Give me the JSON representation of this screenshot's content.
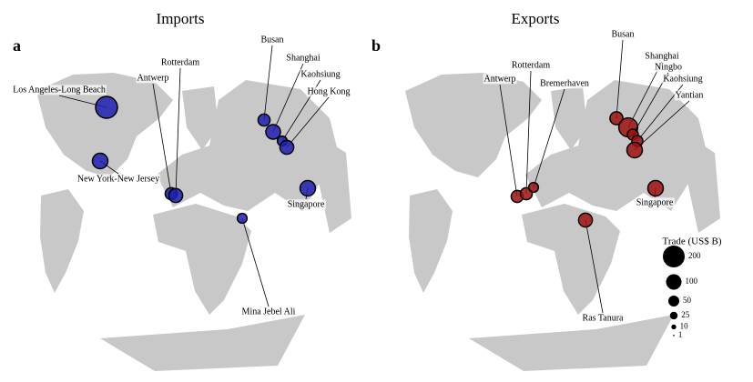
{
  "panels": [
    {
      "label": "a",
      "title": "Imports",
      "color": "#1f1fb0",
      "ports": [
        {
          "name": "Los Angeles-Long Beach",
          "value": 200
        },
        {
          "name": "Antwerp",
          "value": 60
        },
        {
          "name": "Rotterdam",
          "value": 80
        },
        {
          "name": "Busan",
          "value": 60
        },
        {
          "name": "Shanghai",
          "value": 90
        },
        {
          "name": "Kaohsiung",
          "value": 40
        },
        {
          "name": "Hong Kong",
          "value": 80
        },
        {
          "name": "New York-New Jersey",
          "value": 100
        },
        {
          "name": "Singapore",
          "value": 100
        },
        {
          "name": "Mina Jebel Ali",
          "value": 40
        }
      ]
    },
    {
      "label": "b",
      "title": "Exports",
      "color": "#a01010",
      "ports": [
        {
          "name": "Busan",
          "value": 70
        },
        {
          "name": "Shanghai",
          "value": 150
        },
        {
          "name": "Ningbo",
          "value": 50
        },
        {
          "name": "Kaohsiung",
          "value": 50
        },
        {
          "name": "Yantian",
          "value": 100
        },
        {
          "name": "Antwerp",
          "value": 60
        },
        {
          "name": "Rotterdam",
          "value": 60
        },
        {
          "name": "Bremerhaven",
          "value": 40
        },
        {
          "name": "Singapore",
          "value": 100
        },
        {
          "name": "Ras Tanura",
          "value": 80
        }
      ]
    }
  ],
  "legend": {
    "title": "Trade (US$ B)",
    "values": [
      200,
      100,
      50,
      25,
      10,
      1
    ]
  }
}
